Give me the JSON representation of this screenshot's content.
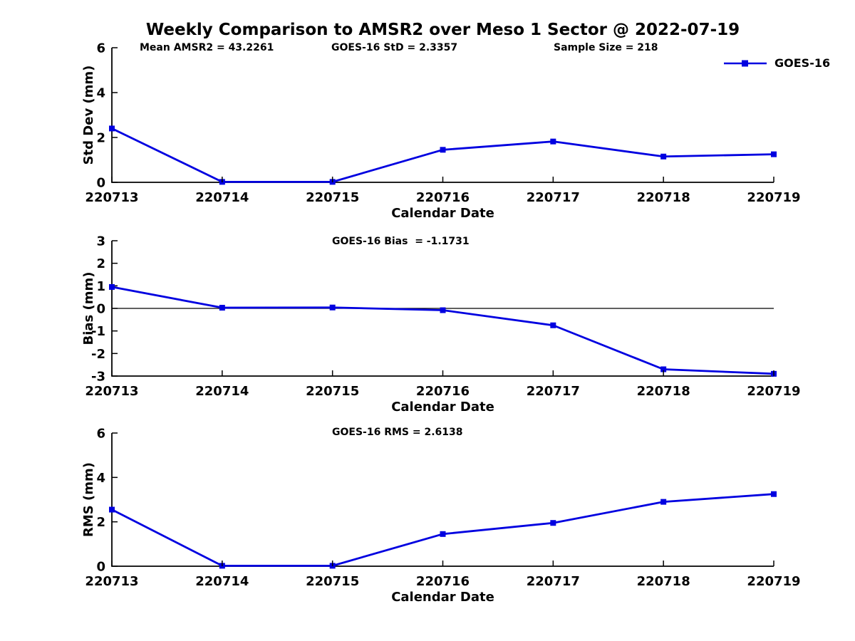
{
  "title": "Weekly Comparison to AMSR2 over Meso 1 Sector @ 2022-07-19",
  "legend": {
    "label": "GOES-16",
    "line_color": "#0000E0",
    "marker": "square"
  },
  "colors": {
    "series": "#0000E0",
    "axis": "#000000",
    "text": "#000000"
  },
  "chart_data": [
    {
      "type": "line",
      "title": "",
      "annotations": [
        "Mean AMSR2 = 43.2261",
        "GOES-16 StD = 2.3357",
        "Sample Size = 218"
      ],
      "categories": [
        "220713",
        "220714",
        "220715",
        "220716",
        "220717",
        "220718",
        "220719"
      ],
      "series": [
        {
          "name": "GOES-16",
          "values": [
            2.4,
            0.02,
            0.02,
            1.45,
            1.82,
            1.15,
            1.25
          ]
        }
      ],
      "xlabel": "Calendar Date",
      "ylabel": "Std Dev (mm)",
      "ylim": [
        0,
        6
      ],
      "yticks": [
        0,
        2,
        4,
        6
      ],
      "grid": false,
      "zero_line": false,
      "legend_position": "top-right"
    },
    {
      "type": "line",
      "title": "",
      "annotations": [
        "GOES-16 Bias  = -1.1731"
      ],
      "categories": [
        "220713",
        "220714",
        "220715",
        "220716",
        "220717",
        "220718",
        "220719"
      ],
      "series": [
        {
          "name": "GOES-16",
          "values": [
            0.95,
            0.03,
            0.04,
            -0.08,
            -0.75,
            -2.7,
            -2.9
          ]
        }
      ],
      "xlabel": "Calendar Date",
      "ylabel": "Bias (mm)",
      "ylim": [
        -3,
        3
      ],
      "yticks": [
        -3,
        -2,
        -1,
        0,
        1,
        2,
        3
      ],
      "grid": false,
      "zero_line": true,
      "legend_position": "none"
    },
    {
      "type": "line",
      "title": "",
      "annotations": [
        "GOES-16 RMS = 2.6138"
      ],
      "categories": [
        "220713",
        "220714",
        "220715",
        "220716",
        "220717",
        "220718",
        "220719"
      ],
      "series": [
        {
          "name": "GOES-16",
          "values": [
            2.55,
            0.02,
            0.02,
            1.45,
            1.95,
            2.9,
            3.25
          ]
        }
      ],
      "xlabel": "Calendar Date",
      "ylabel": "RMS (mm)",
      "ylim": [
        0,
        6
      ],
      "yticks": [
        0,
        2,
        4,
        6
      ],
      "grid": false,
      "zero_line": false,
      "legend_position": "none"
    }
  ]
}
